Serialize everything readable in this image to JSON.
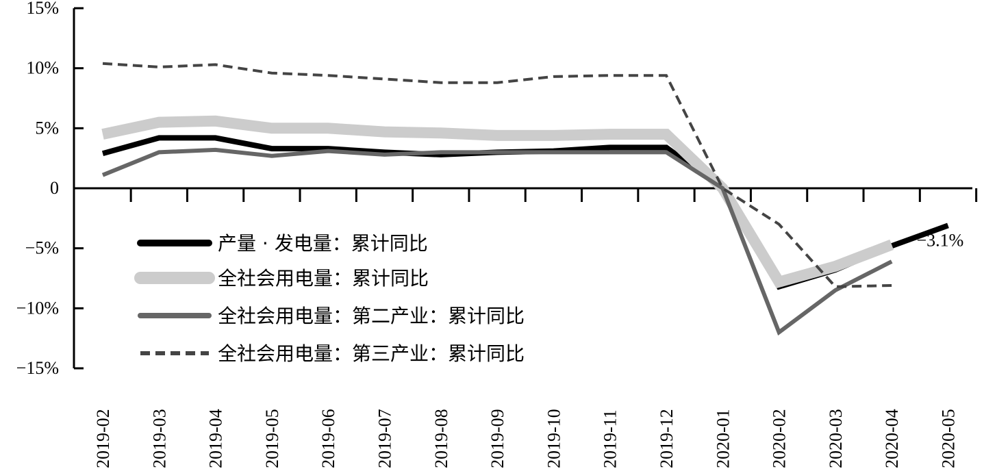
{
  "chart_data": {
    "type": "line",
    "categories": [
      "2019-02",
      "2019-03",
      "2019-04",
      "2019-05",
      "2019-06",
      "2019-07",
      "2019-08",
      "2019-09",
      "2019-10",
      "2019-11",
      "2019-12",
      "2020-01",
      "2020-02",
      "2020-03",
      "2020-04",
      "2020-05"
    ],
    "y_ticks": [
      {
        "value": 15,
        "label": "15%"
      },
      {
        "value": 10,
        "label": "10%"
      },
      {
        "value": 5,
        "label": "5%"
      },
      {
        "value": 0,
        "label": "0"
      },
      {
        "value": -5,
        "label": "−5%"
      },
      {
        "value": -10,
        "label": "−10%"
      },
      {
        "value": -15,
        "label": "−15%"
      }
    ],
    "ylim": [
      -15,
      15
    ],
    "grid": false,
    "legend_position": "lower-left",
    "series": [
      {
        "name": "产量 · 发电量：累计同比",
        "color": "#000000",
        "width": 8,
        "dash": "",
        "values": [
          2.9,
          4.2,
          4.2,
          3.3,
          3.3,
          3.0,
          2.8,
          3.0,
          3.1,
          3.4,
          3.4,
          0.0,
          -8.2,
          -6.8,
          -4.8,
          -3.1
        ]
      },
      {
        "name": "全社会用电量：累计同比",
        "color": "#cccccc",
        "width": 16,
        "dash": "",
        "values": [
          4.5,
          5.5,
          5.6,
          5.0,
          5.0,
          4.7,
          4.6,
          4.4,
          4.4,
          4.5,
          4.5,
          0.0,
          -7.8,
          -6.5,
          -4.7,
          null
        ]
      },
      {
        "name": "全社会用电量：第二产业：累计同比",
        "color": "#666666",
        "width": 6,
        "dash": "",
        "values": [
          1.1,
          3.0,
          3.2,
          2.7,
          3.1,
          2.8,
          3.0,
          3.0,
          3.0,
          3.0,
          3.0,
          0.0,
          -12.0,
          -8.5,
          -6.1,
          null
        ]
      },
      {
        "name": "全社会用电量：第三产业：累计同比",
        "color": "#444444",
        "width": 4,
        "dash": "14 8",
        "values": [
          10.4,
          10.1,
          10.3,
          9.6,
          9.4,
          9.1,
          8.8,
          8.8,
          9.3,
          9.4,
          9.4,
          0.0,
          -3.0,
          -8.2,
          -8.1,
          null
        ]
      }
    ],
    "annotations": [
      {
        "text": "−3.1%",
        "series": 0,
        "index": 15
      }
    ]
  }
}
